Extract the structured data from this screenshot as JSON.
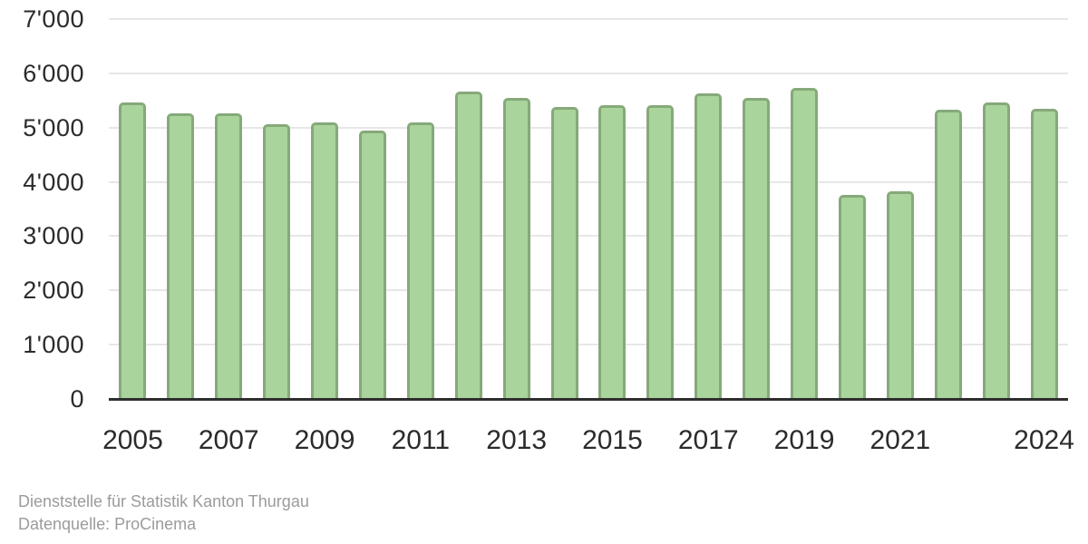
{
  "chart_data": {
    "type": "bar",
    "title": "",
    "xlabel": "",
    "ylabel": "",
    "categories": [
      "2005",
      "2006",
      "2007",
      "2008",
      "2009",
      "2010",
      "2011",
      "2012",
      "2013",
      "2014",
      "2015",
      "2016",
      "2017",
      "2018",
      "2019",
      "2020",
      "2021",
      "2022",
      "2023",
      "2024"
    ],
    "values": [
      5460,
      5260,
      5270,
      5060,
      5090,
      4950,
      5100,
      5660,
      5550,
      5380,
      5410,
      5420,
      5630,
      5550,
      5730,
      3760,
      3820,
      5330,
      5460,
      5350
    ],
    "ylim": [
      0,
      7000
    ],
    "y_tick_values": [
      0,
      1000,
      2000,
      3000,
      4000,
      5000,
      6000,
      7000
    ],
    "y_tick_labels": [
      "0",
      "1'000",
      "2'000",
      "3'000",
      "4'000",
      "5'000",
      "6'000",
      "7'000"
    ],
    "x_tick_labels_shown": [
      "2005",
      "2007",
      "2009",
      "2011",
      "2013",
      "2015",
      "2017",
      "2019",
      "2021",
      "2024"
    ],
    "grid": true,
    "legend": false
  },
  "footer": {
    "line1": "Dienststelle für Statistik Kanton Thurgau",
    "line2": "Datenquelle: ProCinema"
  },
  "colors": {
    "bar_fill": "#a9d49b",
    "bar_border": "#86a97a",
    "gridline": "#e7e7e7",
    "axis_line": "#2e2e2e",
    "tick_text": "#2b2b2b",
    "footer_text": "#9b9b9b",
    "background": "#ffffff"
  }
}
